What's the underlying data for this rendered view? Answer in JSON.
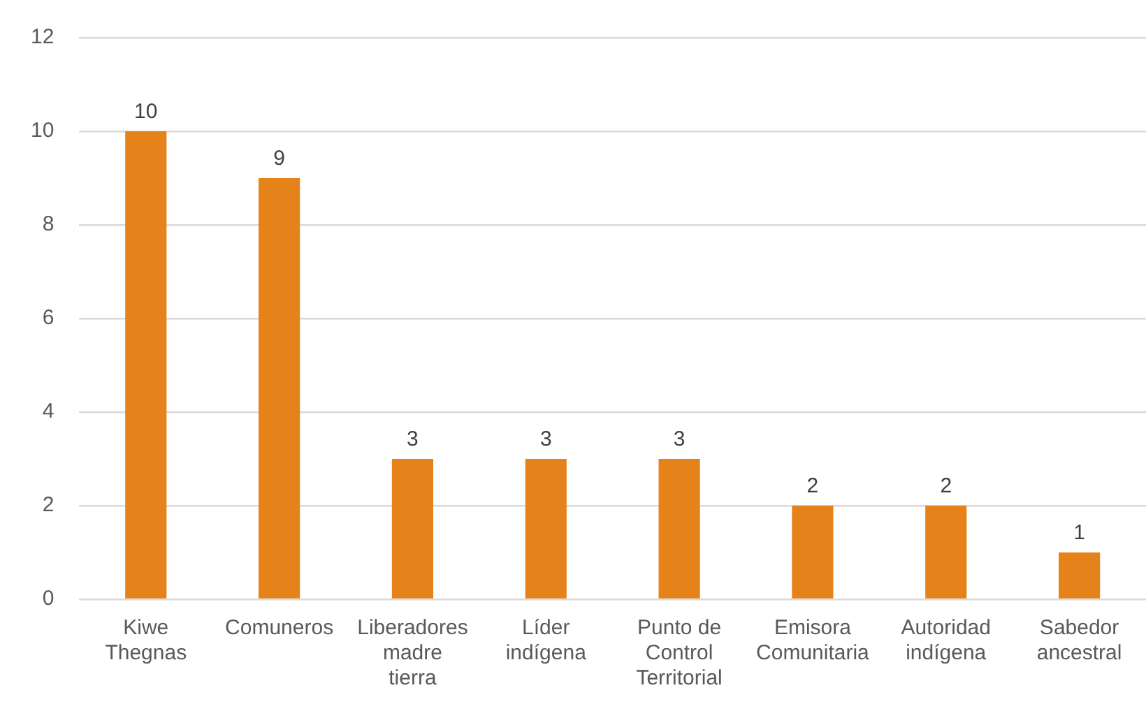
{
  "chart_data": {
    "type": "bar",
    "categories": [
      "Kiwe Thegnas",
      "Comuneros",
      "Liberadores madre tierra",
      "Líder indígena",
      "Punto de Control Territorial",
      "Emisora Comunitaria",
      "Autoridad indígena",
      "Sabedor ancestral"
    ],
    "values": [
      10,
      9,
      3,
      3,
      3,
      2,
      2,
      1
    ],
    "color": "#e6821a",
    "ylim": [
      0,
      12
    ],
    "yticks": [
      0,
      2,
      4,
      6,
      8,
      10,
      12
    ],
    "grid": "y",
    "data_labels": true
  }
}
